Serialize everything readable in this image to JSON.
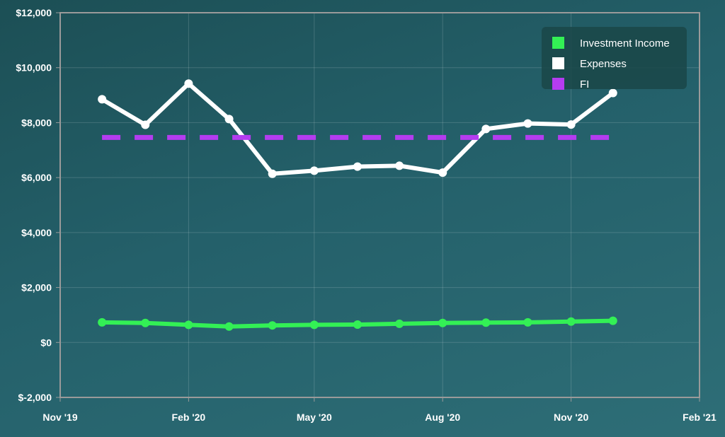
{
  "chart_data": {
    "type": "line",
    "title": "",
    "xlabel": "",
    "ylabel": "",
    "x_ticks": [
      "Nov '19",
      "Feb '20",
      "May '20",
      "Aug '20",
      "Nov '20",
      "Feb '21"
    ],
    "y_ticks": [
      "$-2,000",
      "$0",
      "$2,000",
      "$4,000",
      "$6,000",
      "$8,000",
      "$10,000",
      "$12,000"
    ],
    "xlim": [
      "2019-11-01",
      "2021-02-01"
    ],
    "ylim": [
      -2000,
      12000
    ],
    "grid": true,
    "legend_position": "top-right",
    "x": [
      "2019-12-01",
      "2020-01-01",
      "2020-02-01",
      "2020-03-01",
      "2020-04-01",
      "2020-05-01",
      "2020-06-01",
      "2020-07-01",
      "2020-08-01",
      "2020-09-01",
      "2020-10-01",
      "2020-11-01",
      "2020-12-01"
    ],
    "series": [
      {
        "name": "Investment Income",
        "color": "#33f055",
        "style": "solid",
        "values": [
          730,
          710,
          640,
          580,
          620,
          640,
          650,
          680,
          710,
          720,
          730,
          760,
          790
        ]
      },
      {
        "name": "Expenses",
        "color": "#ffffff",
        "style": "solid",
        "values": [
          8850,
          7920,
          9420,
          8130,
          6140,
          6250,
          6400,
          6430,
          6180,
          7770,
          7970,
          7930,
          9080
        ]
      },
      {
        "name": "FI",
        "color": "#b43cf0",
        "style": "dashed",
        "values": [
          7460,
          7460,
          7460,
          7460,
          7460,
          7460,
          7460,
          7460,
          7460,
          7460,
          7460,
          7460,
          7460
        ]
      }
    ]
  }
}
